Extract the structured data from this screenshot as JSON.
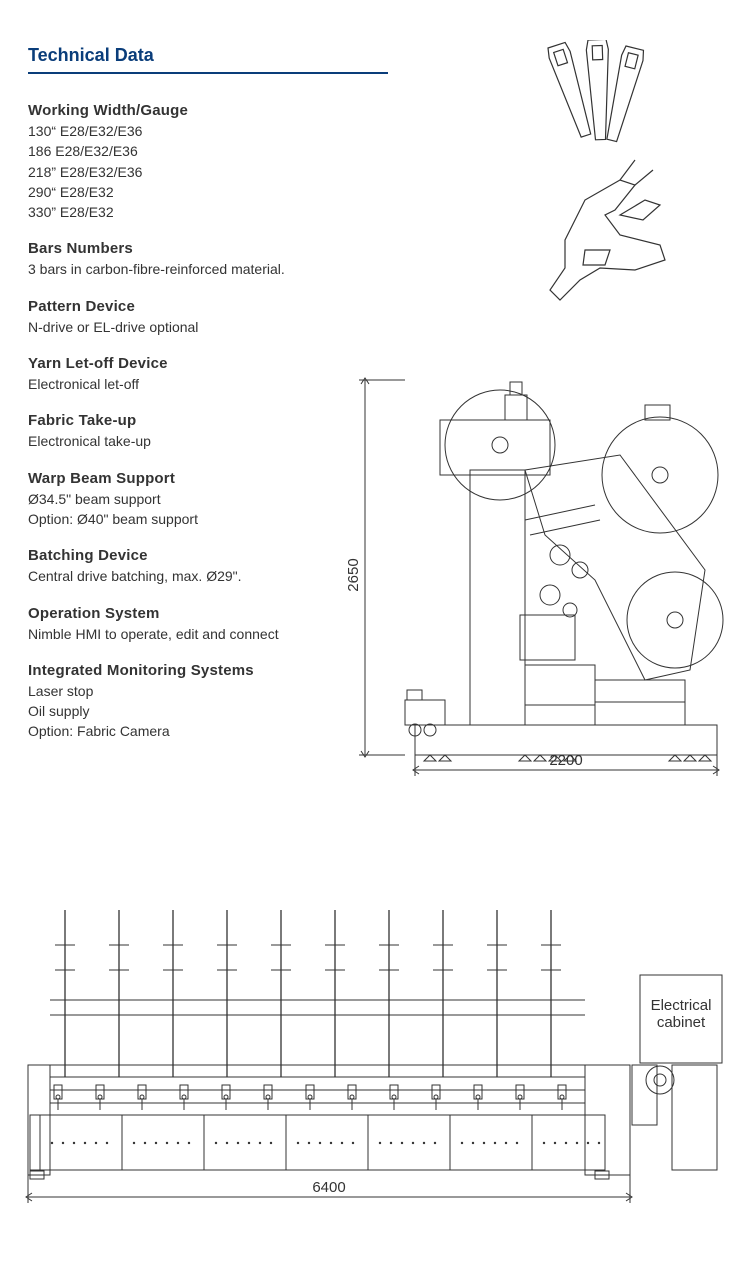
{
  "title": "Technical Data",
  "title_color": "#0a3d7a",
  "rule_color": "#0a3d7a",
  "text_color": "#333333",
  "sections": {
    "working_width": {
      "heading": "Working Width/Gauge",
      "lines": [
        "130“  E28/E32/E36",
        "186    E28/E32/E36",
        "218”  E28/E32/E36",
        "290“  E28/E32",
        "330”  E28/E32"
      ]
    },
    "bars": {
      "heading": "Bars Numbers",
      "lines": [
        "3 bars in carbon-fibre-reinforced material."
      ]
    },
    "pattern": {
      "heading": "Pattern Device",
      "lines": [
        "N-drive or EL-drive optional"
      ]
    },
    "yarn": {
      "heading": "Yarn Let-off Device",
      "lines": [
        "Electronical let-off"
      ]
    },
    "fabric": {
      "heading": "Fabric Take-up",
      "lines": [
        "Electronical take-up"
      ]
    },
    "warp": {
      "heading": "Warp Beam Support",
      "lines": [
        "Ø34.5\" beam support",
        "Option: Ø40\" beam support"
      ]
    },
    "batching": {
      "heading": "Batching Device",
      "lines": [
        "Central drive batching, max. Ø29\"."
      ]
    },
    "operation": {
      "heading": "Operation System",
      "lines": [
        "Nimble HMI to operate, edit and connect"
      ]
    },
    "monitoring": {
      "heading": "Integrated  Monitoring  Systems",
      "lines": [
        "Laser stop",
        "Oil supply",
        "Option: Fabric  Camera"
      ]
    }
  },
  "side_view": {
    "height_mm": "2650",
    "width_mm": "2200",
    "stroke": "#333333"
  },
  "front_view": {
    "width_mm": "6400",
    "cabinet_label_l1": "Electrical",
    "cabinet_label_l2": "cabinet",
    "stroke": "#333333"
  },
  "diagram_stroke": "#333333"
}
